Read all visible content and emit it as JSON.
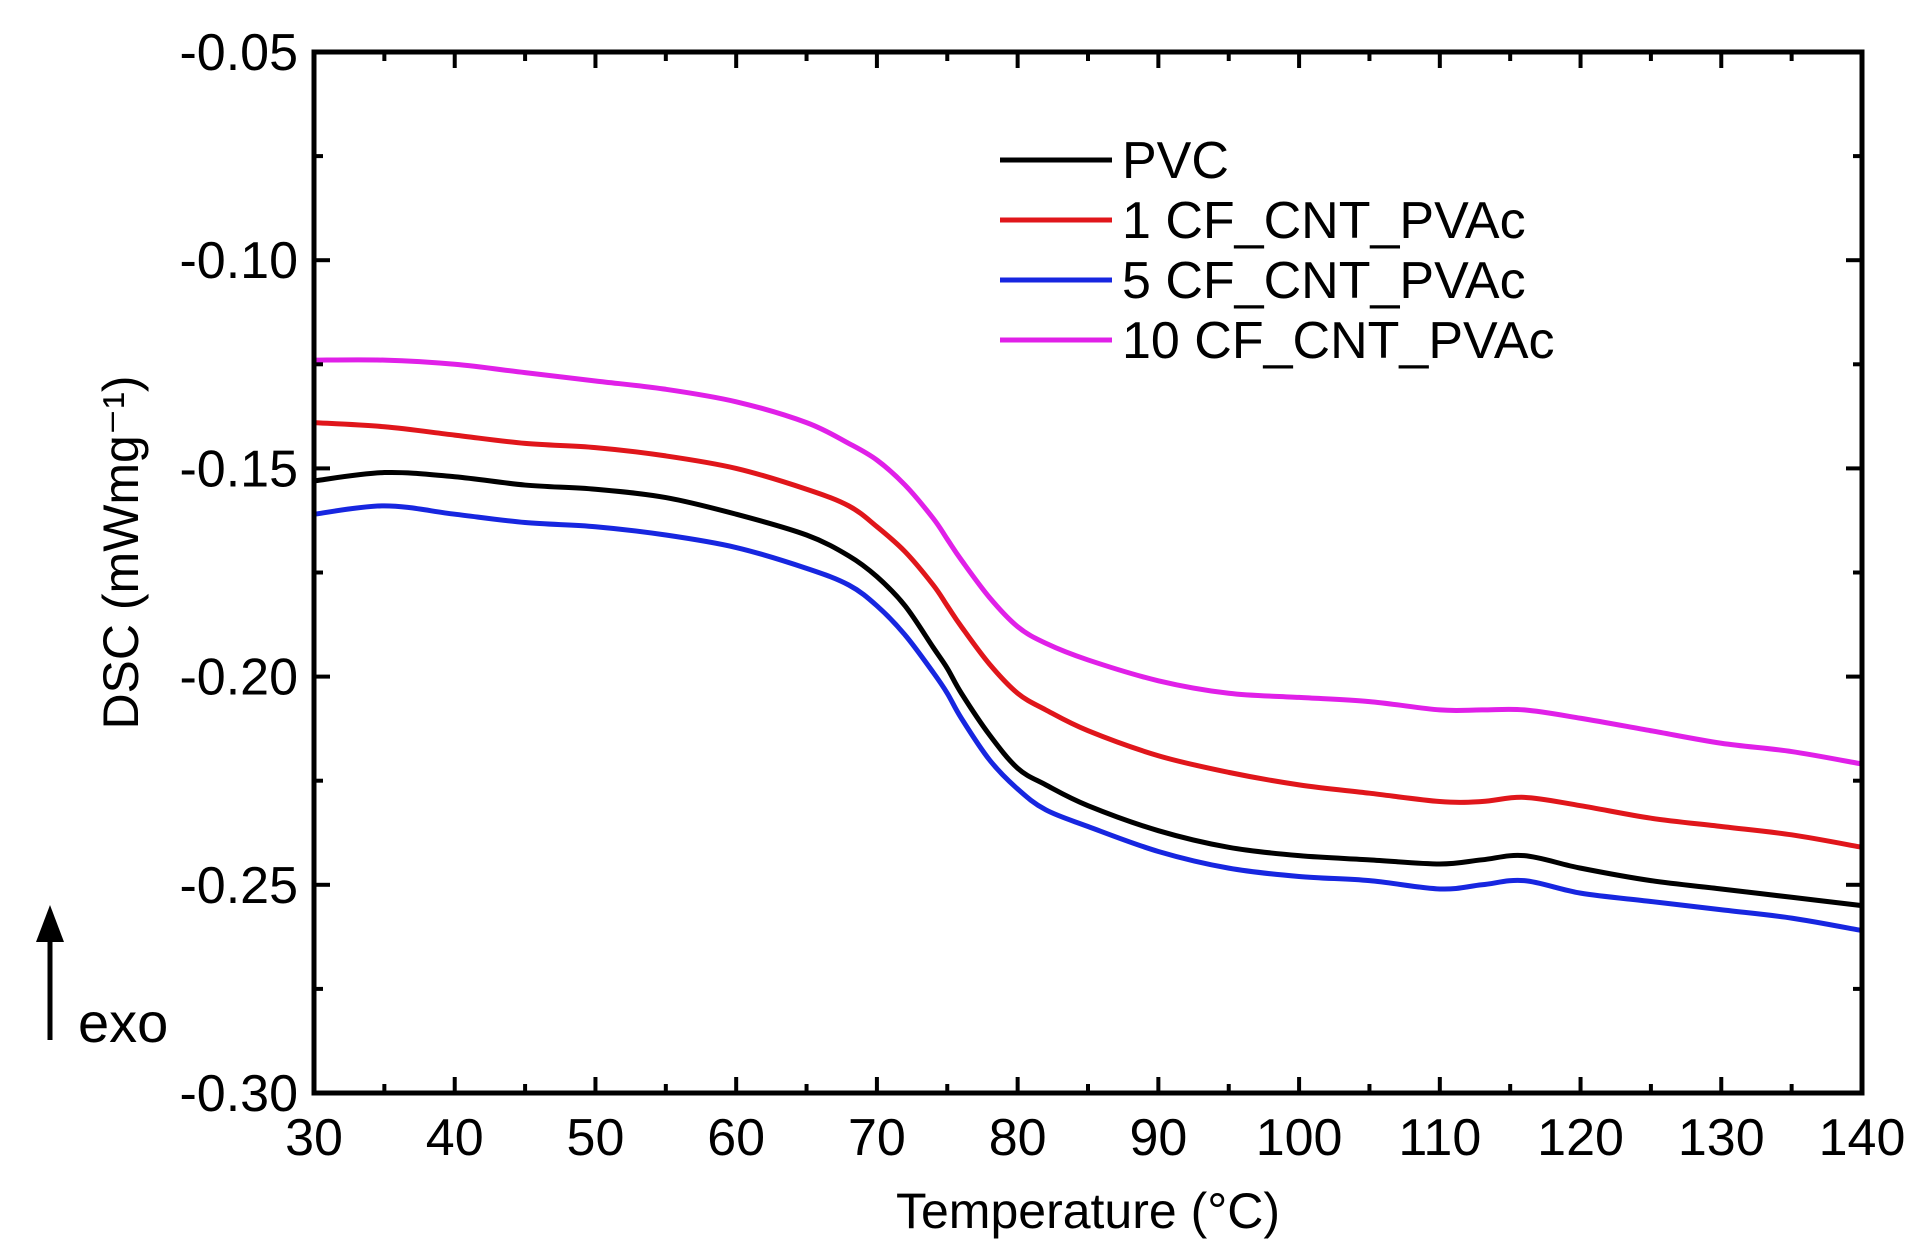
{
  "chart_data": {
    "type": "line",
    "title": "",
    "xlabel": "Temperature (°C)",
    "ylabel": "DSC (mWmg⁻¹)",
    "xlim": [
      30,
      140
    ],
    "ylim": [
      -0.3,
      -0.05
    ],
    "xticks": [
      30,
      40,
      50,
      60,
      70,
      80,
      90,
      100,
      110,
      120,
      130,
      140
    ],
    "yticks": [
      -0.3,
      -0.25,
      -0.2,
      -0.15,
      -0.1,
      -0.05
    ],
    "xtick_labels": [
      "30",
      "40",
      "50",
      "60",
      "70",
      "80",
      "90",
      "100",
      "110",
      "120",
      "130",
      "140"
    ],
    "ytick_labels": [
      "-0.30",
      "-0.25",
      "-0.20",
      "-0.15",
      "-0.10",
      "-0.05"
    ],
    "grid": false,
    "legend_position": "top-right",
    "annotation": {
      "text": "exo",
      "arrow": "up"
    },
    "series": [
      {
        "name": "PVC",
        "color": "#000000",
        "x": [
          30,
          35,
          40,
          45,
          50,
          55,
          60,
          65,
          68,
          70,
          72,
          74,
          75,
          76,
          78,
          80,
          82,
          85,
          90,
          95,
          100,
          105,
          110,
          113,
          116,
          120,
          125,
          130,
          135,
          140
        ],
        "y": [
          -0.153,
          -0.151,
          -0.152,
          -0.154,
          -0.155,
          -0.157,
          -0.161,
          -0.166,
          -0.171,
          -0.176,
          -0.183,
          -0.193,
          -0.198,
          -0.204,
          -0.214,
          -0.222,
          -0.226,
          -0.231,
          -0.237,
          -0.241,
          -0.243,
          -0.244,
          -0.245,
          -0.244,
          -0.243,
          -0.246,
          -0.249,
          -0.251,
          -0.253,
          -0.255
        ]
      },
      {
        "name": "1 CF_CNT_PVAc",
        "color": "#e0161b",
        "x": [
          30,
          35,
          40,
          45,
          50,
          55,
          60,
          65,
          68,
          70,
          72,
          74,
          75,
          76,
          78,
          80,
          82,
          85,
          90,
          95,
          100,
          105,
          110,
          113,
          116,
          120,
          125,
          130,
          135,
          140
        ],
        "y": [
          -0.139,
          -0.14,
          -0.142,
          -0.144,
          -0.145,
          -0.147,
          -0.15,
          -0.155,
          -0.159,
          -0.164,
          -0.17,
          -0.178,
          -0.183,
          -0.188,
          -0.197,
          -0.204,
          -0.208,
          -0.213,
          -0.219,
          -0.223,
          -0.226,
          -0.228,
          -0.23,
          -0.23,
          -0.229,
          -0.231,
          -0.234,
          -0.236,
          -0.238,
          -0.241
        ]
      },
      {
        "name": "5 CF_CNT_PVAc",
        "color": "#1726e0",
        "x": [
          30,
          35,
          40,
          45,
          50,
          55,
          60,
          65,
          68,
          70,
          72,
          74,
          75,
          76,
          78,
          80,
          82,
          85,
          90,
          95,
          100,
          105,
          110,
          113,
          116,
          120,
          125,
          130,
          135,
          140
        ],
        "y": [
          -0.161,
          -0.159,
          -0.161,
          -0.163,
          -0.164,
          -0.166,
          -0.169,
          -0.174,
          -0.178,
          -0.183,
          -0.19,
          -0.199,
          -0.204,
          -0.21,
          -0.22,
          -0.227,
          -0.232,
          -0.236,
          -0.242,
          -0.246,
          -0.248,
          -0.249,
          -0.251,
          -0.25,
          -0.249,
          -0.252,
          -0.254,
          -0.256,
          -0.258,
          -0.261
        ]
      },
      {
        "name": "10 CF_CNT_PVAc",
        "color": "#e020e8",
        "x": [
          30,
          35,
          40,
          45,
          50,
          55,
          60,
          65,
          68,
          70,
          72,
          74,
          75,
          76,
          78,
          80,
          82,
          85,
          90,
          95,
          100,
          105,
          110,
          113,
          116,
          120,
          125,
          130,
          135,
          140
        ],
        "y": [
          -0.124,
          -0.124,
          -0.125,
          -0.127,
          -0.129,
          -0.131,
          -0.134,
          -0.139,
          -0.144,
          -0.148,
          -0.154,
          -0.162,
          -0.167,
          -0.172,
          -0.181,
          -0.188,
          -0.192,
          -0.196,
          -0.201,
          -0.204,
          -0.205,
          -0.206,
          -0.208,
          -0.208,
          -0.208,
          -0.21,
          -0.213,
          -0.216,
          -0.218,
          -0.221
        ]
      }
    ]
  }
}
